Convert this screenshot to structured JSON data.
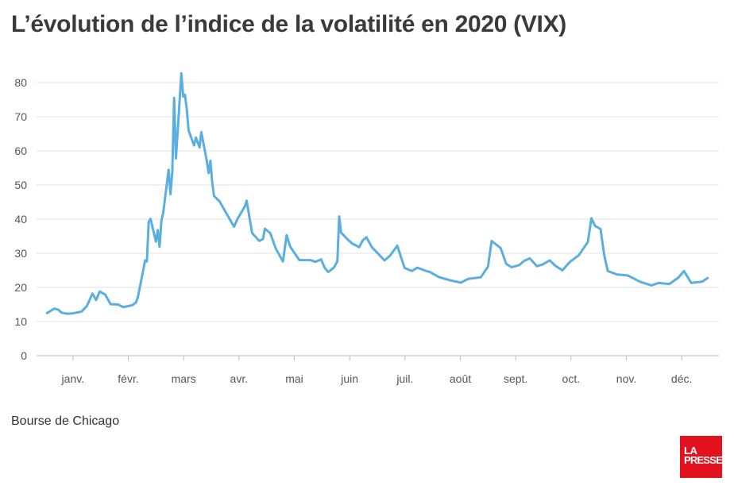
{
  "title": "L’évolution de l’indice de la volatilité en 2020 (VIX)",
  "source": "Bourse de Chicago",
  "logo": {
    "line1": "LA",
    "line2": "PRESSE",
    "color": "#e2121f"
  },
  "chart_data": {
    "type": "line",
    "title": "L’évolution de l’indice de la volatilité en 2020 (VIX)",
    "xlabel": "",
    "ylabel": "",
    "ylim": [
      0,
      80
    ],
    "yticks": [
      0,
      10,
      20,
      30,
      40,
      50,
      60,
      70,
      80
    ],
    "xticks": [
      "janv.",
      "févr.",
      "mars",
      "avr.",
      "mai",
      "juin",
      "juil.",
      "août",
      "sept.",
      "oct.",
      "nov.",
      "déc."
    ],
    "grid": true,
    "line_color": "#5aaee0",
    "series": [
      {
        "name": "",
        "x": [
          "2020-01-02",
          "2020-01-06",
          "2020-01-08",
          "2020-01-10",
          "2020-01-13",
          "2020-01-16",
          "2020-01-21",
          "2020-01-24",
          "2020-01-27",
          "2020-01-29",
          "2020-01-31",
          "2020-02-03",
          "2020-02-06",
          "2020-02-10",
          "2020-02-13",
          "2020-02-18",
          "2020-02-20",
          "2020-02-21",
          "2020-02-24",
          "2020-02-25",
          "2020-02-26",
          "2020-02-27",
          "2020-02-28",
          "2020-03-02",
          "2020-03-03",
          "2020-03-04",
          "2020-03-05",
          "2020-03-06",
          "2020-03-09",
          "2020-03-10",
          "2020-03-11",
          "2020-03-12",
          "2020-03-13",
          "2020-03-16",
          "2020-03-17",
          "2020-03-18",
          "2020-03-19",
          "2020-03-20",
          "2020-03-23",
          "2020-03-24",
          "2020-03-26",
          "2020-03-27",
          "2020-03-30",
          "2020-03-31",
          "2020-04-01",
          "2020-04-02",
          "2020-04-03",
          "2020-04-06",
          "2020-04-08",
          "2020-04-14",
          "2020-04-16",
          "2020-04-20",
          "2020-04-21",
          "2020-04-24",
          "2020-04-28",
          "2020-04-30",
          "2020-05-01",
          "2020-05-04",
          "2020-05-07",
          "2020-05-11",
          "2020-05-13",
          "2020-05-15",
          "2020-05-20",
          "2020-05-26",
          "2020-05-29",
          "2020-06-01",
          "2020-06-03",
          "2020-06-05",
          "2020-06-08",
          "2020-06-10",
          "2020-06-11",
          "2020-06-12",
          "2020-06-15",
          "2020-06-18",
          "2020-06-22",
          "2020-06-24",
          "2020-06-26",
          "2020-06-29",
          "2020-07-06",
          "2020-07-09",
          "2020-07-13",
          "2020-07-17",
          "2020-07-21",
          "2020-07-24",
          "2020-07-29",
          "2020-07-31",
          "2020-08-05",
          "2020-08-11",
          "2020-08-17",
          "2020-08-21",
          "2020-08-28",
          "2020-09-01",
          "2020-09-03",
          "2020-09-08",
          "2020-09-11",
          "2020-09-14",
          "2020-09-18",
          "2020-09-21",
          "2020-09-24",
          "2020-09-28",
          "2020-10-01",
          "2020-10-05",
          "2020-10-08",
          "2020-10-12",
          "2020-10-16",
          "2020-10-21",
          "2020-10-26",
          "2020-10-28",
          "2020-10-30",
          "2020-11-02",
          "2020-11-04",
          "2020-11-06",
          "2020-11-11",
          "2020-11-17",
          "2020-11-24",
          "2020-11-30",
          "2020-12-04",
          "2020-12-10",
          "2020-12-15",
          "2020-12-18",
          "2020-12-22",
          "2020-12-28",
          "2020-12-31"
        ],
        "values": [
          12.5,
          13.8,
          13.5,
          12.6,
          12.3,
          12.4,
          12.9,
          14.6,
          18.2,
          16.3,
          18.8,
          17.9,
          15.1,
          15.0,
          14.2,
          14.8,
          15.6,
          17.1,
          25.0,
          27.9,
          27.6,
          39.2,
          40.1,
          33.4,
          36.8,
          31.9,
          39.6,
          41.9,
          54.5,
          47.3,
          53.9,
          75.5,
          57.8,
          82.7,
          75.9,
          76.4,
          72.0,
          66.0,
          61.6,
          63.9,
          61.0,
          65.5,
          57.1,
          53.5,
          57.1,
          50.9,
          46.8,
          45.2,
          43.4,
          37.8,
          40.1,
          43.8,
          45.4,
          35.9,
          33.6,
          34.2,
          37.2,
          35.9,
          31.4,
          27.6,
          35.3,
          31.9,
          27.99,
          28.0,
          27.5,
          28.2,
          25.7,
          24.5,
          25.8,
          27.6,
          40.8,
          36.1,
          34.4,
          32.9,
          31.8,
          33.8,
          34.7,
          31.8,
          27.9,
          29.3,
          32.2,
          25.7,
          24.8,
          25.8,
          24.8,
          24.5,
          22.99,
          22.1,
          21.4,
          22.5,
          22.96,
          26.1,
          33.6,
          31.5,
          26.9,
          25.9,
          26.5,
          27.8,
          28.5,
          26.2,
          26.7,
          27.9,
          26.4,
          25.0,
          27.4,
          29.4,
          33.3,
          40.3,
          38.0,
          37.1,
          29.6,
          24.8,
          23.8,
          23.5,
          21.6,
          20.6,
          21.3,
          21.0,
          22.9,
          24.8,
          21.3,
          21.7,
          22.75
        ]
      }
    ]
  }
}
